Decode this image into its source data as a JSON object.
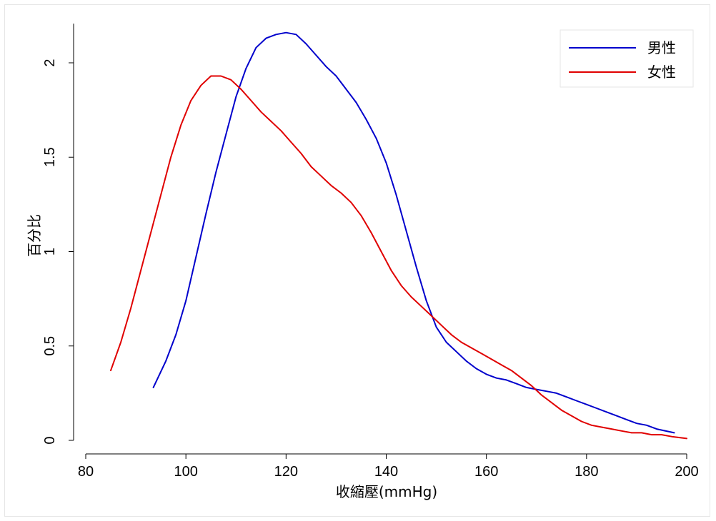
{
  "chart_data": {
    "type": "line",
    "xlabel": "收縮壓(mmHg)",
    "ylabel": "百分比",
    "xlim": [
      80,
      200
    ],
    "ylim": [
      0,
      2.2
    ],
    "xticks": [
      80,
      100,
      120,
      140,
      160,
      180,
      200
    ],
    "yticks": [
      0,
      0.5,
      1,
      1.5,
      2
    ],
    "ytick_labels": [
      "0",
      "0.5",
      "1",
      "1.5",
      "2"
    ],
    "grid": false,
    "legend_position": "top-right",
    "series": [
      {
        "name": "男性",
        "color": "#0000cc",
        "x": [
          93.5,
          96,
          98,
          100,
          102,
          104,
          106,
          108,
          110,
          112,
          114,
          116,
          118,
          120,
          122,
          124,
          126,
          128,
          130,
          132,
          134,
          136,
          138,
          140,
          142,
          144,
          146,
          148,
          150,
          152,
          154,
          156,
          158,
          160,
          162,
          164,
          166,
          168,
          170,
          172,
          174,
          176,
          178,
          180,
          182,
          184,
          186,
          188,
          190,
          192,
          194,
          197.5
        ],
        "y": [
          0.28,
          0.42,
          0.56,
          0.74,
          0.97,
          1.2,
          1.42,
          1.62,
          1.82,
          1.97,
          2.08,
          2.13,
          2.15,
          2.16,
          2.15,
          2.1,
          2.04,
          1.98,
          1.93,
          1.86,
          1.79,
          1.7,
          1.6,
          1.47,
          1.3,
          1.11,
          0.92,
          0.74,
          0.6,
          0.52,
          0.47,
          0.42,
          0.38,
          0.35,
          0.33,
          0.32,
          0.3,
          0.28,
          0.27,
          0.26,
          0.25,
          0.23,
          0.21,
          0.19,
          0.17,
          0.15,
          0.13,
          0.11,
          0.09,
          0.08,
          0.06,
          0.04
        ]
      },
      {
        "name": "女性",
        "color": "#e00000",
        "x": [
          85,
          87,
          89,
          91,
          93,
          95,
          97,
          99,
          101,
          103,
          105,
          107,
          109,
          111,
          113,
          115,
          117,
          119,
          121,
          123,
          125,
          127,
          129,
          131,
          133,
          135,
          137,
          139,
          141,
          143,
          145,
          147,
          149,
          151,
          153,
          155,
          157,
          159,
          161,
          163,
          165,
          167,
          169,
          171,
          173,
          175,
          177,
          179,
          181,
          183,
          185,
          187,
          189,
          191,
          193,
          195,
          197,
          200
        ],
        "y": [
          0.37,
          0.52,
          0.7,
          0.9,
          1.1,
          1.3,
          1.5,
          1.67,
          1.8,
          1.88,
          1.93,
          1.93,
          1.91,
          1.86,
          1.8,
          1.74,
          1.69,
          1.64,
          1.58,
          1.52,
          1.45,
          1.4,
          1.35,
          1.31,
          1.26,
          1.19,
          1.1,
          1.0,
          0.9,
          0.82,
          0.76,
          0.71,
          0.66,
          0.61,
          0.56,
          0.52,
          0.49,
          0.46,
          0.43,
          0.4,
          0.37,
          0.33,
          0.29,
          0.24,
          0.2,
          0.16,
          0.13,
          0.1,
          0.08,
          0.07,
          0.06,
          0.05,
          0.04,
          0.04,
          0.03,
          0.03,
          0.02,
          0.01
        ]
      }
    ]
  }
}
